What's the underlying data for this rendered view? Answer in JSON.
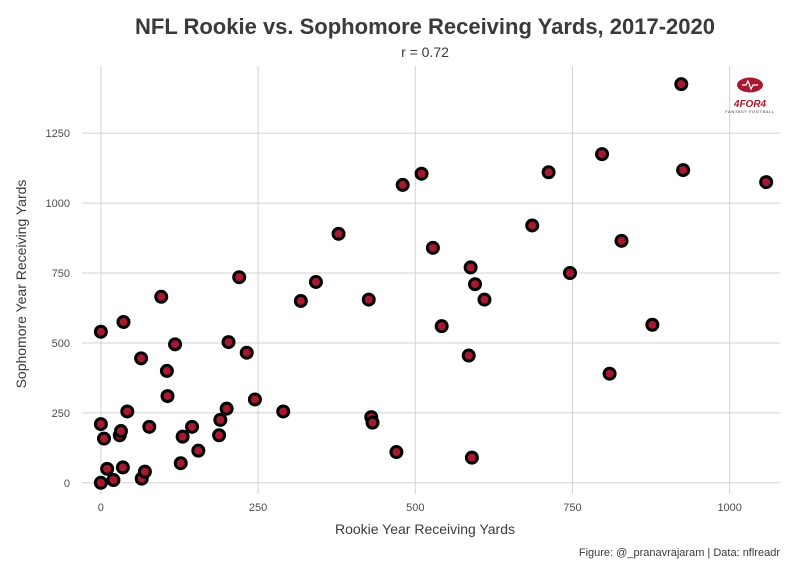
{
  "colors": {
    "point_fill": "#A71930",
    "point_stroke": "#000000",
    "logo": "#A71930",
    "grid": "#d2d2d2",
    "text": "#3a3a3a"
  },
  "logo": {
    "icon": "football-icon",
    "text": "4FOR4",
    "subtext": "FANTASY FOOTBALL"
  },
  "chart_data": {
    "type": "scatter",
    "title": "NFL Rookie vs. Sophomore Receiving Yards, 2017-2020",
    "subtitle": "r = 0.72",
    "xlabel": "Rookie Year Receiving Yards",
    "ylabel": "Sophomore Year Receiving Yards",
    "caption": "Figure: @_pranavrajaram | Data: nflreadr",
    "xlim": [
      -30,
      1080
    ],
    "ylim": [
      -40,
      1490
    ],
    "xticks": [
      0,
      250,
      500,
      750,
      1000
    ],
    "yticks": [
      0,
      250,
      500,
      750,
      1000,
      1250
    ],
    "grid": true,
    "points": [
      {
        "x": 0,
        "y": 0
      },
      {
        "x": 0,
        "y": 210
      },
      {
        "x": 0,
        "y": 540
      },
      {
        "x": 5,
        "y": 158
      },
      {
        "x": 10,
        "y": 50
      },
      {
        "x": 20,
        "y": 10
      },
      {
        "x": 30,
        "y": 170
      },
      {
        "x": 32,
        "y": 185
      },
      {
        "x": 35,
        "y": 55
      },
      {
        "x": 36,
        "y": 575
      },
      {
        "x": 42,
        "y": 255
      },
      {
        "x": 64,
        "y": 445
      },
      {
        "x": 65,
        "y": 15
      },
      {
        "x": 70,
        "y": 40
      },
      {
        "x": 77,
        "y": 200
      },
      {
        "x": 96,
        "y": 665
      },
      {
        "x": 105,
        "y": 400
      },
      {
        "x": 106,
        "y": 310
      },
      {
        "x": 118,
        "y": 495
      },
      {
        "x": 127,
        "y": 70
      },
      {
        "x": 130,
        "y": 165
      },
      {
        "x": 145,
        "y": 200
      },
      {
        "x": 155,
        "y": 115
      },
      {
        "x": 188,
        "y": 170
      },
      {
        "x": 190,
        "y": 225
      },
      {
        "x": 200,
        "y": 265
      },
      {
        "x": 203,
        "y": 503
      },
      {
        "x": 220,
        "y": 735
      },
      {
        "x": 232,
        "y": 465
      },
      {
        "x": 245,
        "y": 298
      },
      {
        "x": 290,
        "y": 255
      },
      {
        "x": 318,
        "y": 650
      },
      {
        "x": 342,
        "y": 718
      },
      {
        "x": 378,
        "y": 890
      },
      {
        "x": 426,
        "y": 655
      },
      {
        "x": 430,
        "y": 235
      },
      {
        "x": 432,
        "y": 215
      },
      {
        "x": 470,
        "y": 110
      },
      {
        "x": 480,
        "y": 1065
      },
      {
        "x": 510,
        "y": 1105
      },
      {
        "x": 528,
        "y": 840
      },
      {
        "x": 542,
        "y": 560
      },
      {
        "x": 585,
        "y": 455
      },
      {
        "x": 588,
        "y": 770
      },
      {
        "x": 590,
        "y": 90
      },
      {
        "x": 595,
        "y": 710
      },
      {
        "x": 610,
        "y": 655
      },
      {
        "x": 686,
        "y": 920
      },
      {
        "x": 712,
        "y": 1110
      },
      {
        "x": 746,
        "y": 750
      },
      {
        "x": 797,
        "y": 1175
      },
      {
        "x": 809,
        "y": 390
      },
      {
        "x": 828,
        "y": 865
      },
      {
        "x": 877,
        "y": 565
      },
      {
        "x": 923,
        "y": 1425
      },
      {
        "x": 926,
        "y": 1118
      },
      {
        "x": 1058,
        "y": 1075
      }
    ]
  }
}
